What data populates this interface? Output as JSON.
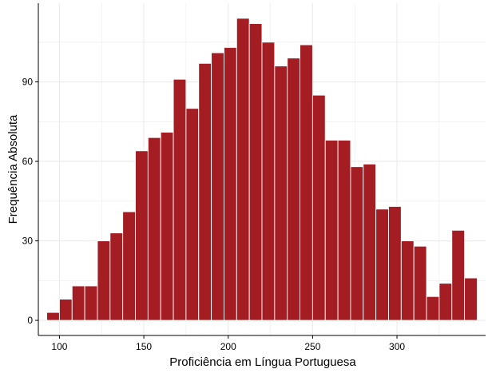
{
  "chart_data": {
    "type": "bar",
    "subtype": "histogram",
    "title": "",
    "xlabel": "Proficiência em Língua Portuguesa",
    "ylabel": "Frequência Absoluta",
    "bin_width": 7.5,
    "bins": [
      {
        "x": 96.25,
        "count": 3
      },
      {
        "x": 103.75,
        "count": 8
      },
      {
        "x": 111.25,
        "count": 13
      },
      {
        "x": 118.75,
        "count": 13
      },
      {
        "x": 126.25,
        "count": 30
      },
      {
        "x": 133.75,
        "count": 33
      },
      {
        "x": 141.25,
        "count": 41
      },
      {
        "x": 148.75,
        "count": 64
      },
      {
        "x": 156.25,
        "count": 69
      },
      {
        "x": 163.75,
        "count": 71
      },
      {
        "x": 171.25,
        "count": 91
      },
      {
        "x": 178.75,
        "count": 80
      },
      {
        "x": 186.25,
        "count": 97
      },
      {
        "x": 193.75,
        "count": 101
      },
      {
        "x": 201.25,
        "count": 103
      },
      {
        "x": 208.75,
        "count": 114
      },
      {
        "x": 216.25,
        "count": 112
      },
      {
        "x": 223.75,
        "count": 105
      },
      {
        "x": 231.25,
        "count": 96
      },
      {
        "x": 238.75,
        "count": 99
      },
      {
        "x": 246.25,
        "count": 104
      },
      {
        "x": 253.75,
        "count": 85
      },
      {
        "x": 261.25,
        "count": 68
      },
      {
        "x": 268.75,
        "count": 68
      },
      {
        "x": 276.25,
        "count": 58
      },
      {
        "x": 283.75,
        "count": 59
      },
      {
        "x": 291.25,
        "count": 42
      },
      {
        "x": 298.75,
        "count": 43
      },
      {
        "x": 306.25,
        "count": 30
      },
      {
        "x": 313.75,
        "count": 28
      },
      {
        "x": 321.25,
        "count": 9
      },
      {
        "x": 328.75,
        "count": 14
      },
      {
        "x": 336.25,
        "count": 34
      },
      {
        "x": 343.75,
        "count": 16
      }
    ],
    "xlim": [
      87.5,
      352.5
    ],
    "ylim": [
      -5.7,
      119.7
    ],
    "x_ticks": [
      100,
      150,
      200,
      250,
      300
    ],
    "y_ticks": [
      0,
      30,
      60,
      90
    ],
    "grid": true,
    "colors": {
      "bar_fill": "#A31D23",
      "bar_outline": "#ffffff",
      "grid": "#EBEBEB",
      "axis": "#000000"
    }
  }
}
